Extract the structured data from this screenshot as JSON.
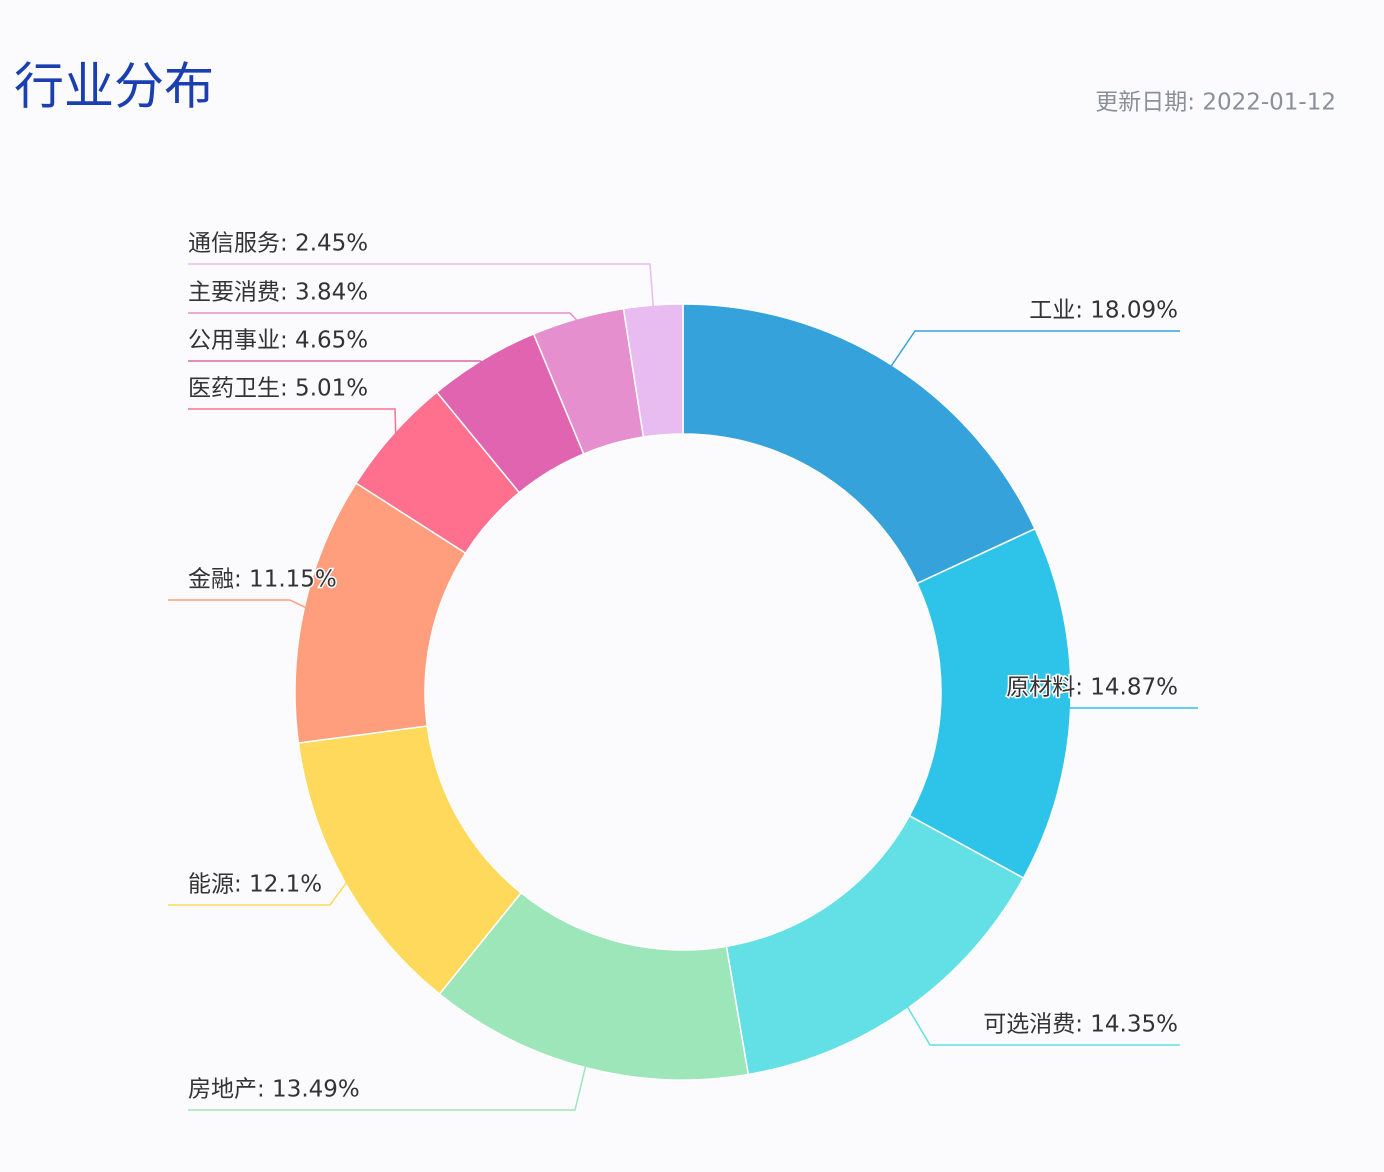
{
  "chart_data": {
    "type": "donut",
    "title": "行业分布",
    "subtitle": "更新日期: 2022-01-12",
    "labels": [
      "工业: 18.09%",
      "原材料: 14.87%",
      "可选消费: 14.35%",
      "房地产: 13.49%",
      "能源: 12.1%",
      "金融: 11.15%",
      "医药卫生: 5.01%",
      "公用事业: 4.65%",
      "主要消费: 3.84%",
      "通信服务: 2.45%"
    ],
    "values": [
      18.09,
      14.87,
      14.35,
      13.49,
      12.1,
      11.15,
      5.01,
      4.65,
      3.84,
      2.45
    ],
    "colors": [
      "#36a2db",
      "#2ec4e9",
      "#63e0e6",
      "#9de6ba",
      "#ffd95c",
      "#ff9e7d",
      "#ff6f8e",
      "#e064b0",
      "#e68fcf",
      "#e8bcf0"
    ]
  }
}
